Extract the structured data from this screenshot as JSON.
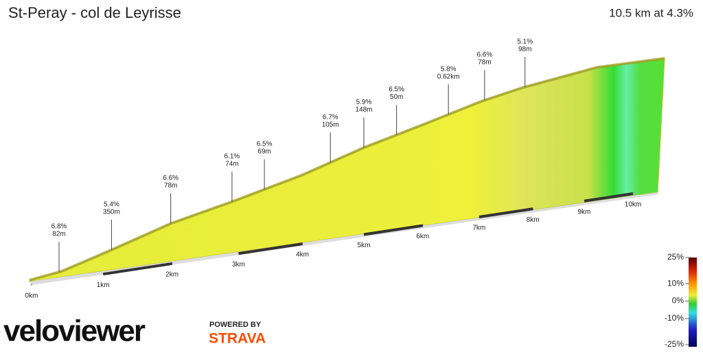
{
  "chart_data": {
    "type": "profile",
    "title": "St-Peray - col de Leyrisse",
    "subtitle": "10.5 km at 4.3%",
    "xlim": [
      0,
      10.5
    ],
    "xticks": [
      {
        "value": 0,
        "label": "0km"
      },
      {
        "value": 1,
        "label": "1km"
      },
      {
        "value": 2,
        "label": "2km"
      },
      {
        "value": 3,
        "label": "3km"
      },
      {
        "value": 4,
        "label": "4km"
      },
      {
        "value": 5,
        "label": "5km"
      },
      {
        "value": 6,
        "label": "6km"
      },
      {
        "value": 7,
        "label": "7km"
      },
      {
        "value": 8,
        "label": "8km"
      },
      {
        "value": 9,
        "label": "9km"
      },
      {
        "value": 10,
        "label": "10km"
      }
    ],
    "annotations": [
      {
        "x": 0.38,
        "grade": "6.8%",
        "length": "82m"
      },
      {
        "x": 1.12,
        "grade": "5.4%",
        "length": "350m"
      },
      {
        "x": 1.98,
        "grade": "6.6%",
        "length": "78m"
      },
      {
        "x": 2.9,
        "grade": "6.1%",
        "length": "74m"
      },
      {
        "x": 3.4,
        "grade": "6.5%",
        "length": "69m"
      },
      {
        "x": 4.45,
        "grade": "6.7%",
        "length": "105m"
      },
      {
        "x": 5.0,
        "grade": "5.9%",
        "length": "148m"
      },
      {
        "x": 5.55,
        "grade": "6.5%",
        "length": "50m"
      },
      {
        "x": 6.45,
        "grade": "5.8%",
        "length": "0.62km"
      },
      {
        "x": 7.1,
        "grade": "6.6%",
        "length": "78m"
      },
      {
        "x": 7.85,
        "grade": "5.1%",
        "length": "98m"
      }
    ],
    "color_scale": {
      "lim": [
        -25,
        25
      ],
      "ticks": [
        {
          "value": 25,
          "label": "25%"
        },
        {
          "value": 10,
          "label": "10%"
        },
        {
          "value": 0,
          "label": "0%"
        },
        {
          "value": -10,
          "label": "-10%"
        },
        {
          "value": -25,
          "label": "-25%"
        }
      ]
    },
    "logos": {
      "brand": "veloviewer",
      "powered": "POWERED BY",
      "partner": "STRAVA"
    }
  }
}
